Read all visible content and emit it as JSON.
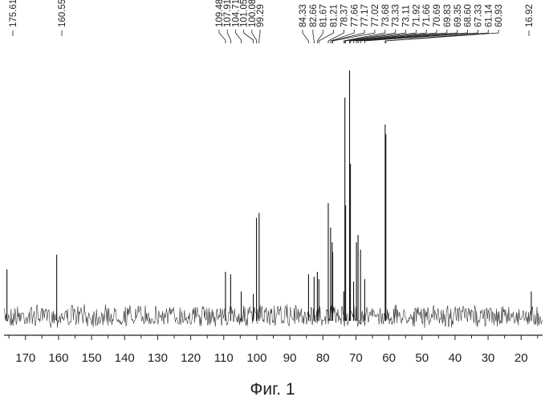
{
  "figure": {
    "caption": "Фиг. 1"
  },
  "chart_data": {
    "type": "line",
    "title": "",
    "xlabel": "",
    "ylabel": "",
    "xlim": [
      176.5,
      13.5
    ],
    "x_reversed": true,
    "xticks": [
      170,
      160,
      150,
      140,
      130,
      120,
      110,
      100,
      90,
      80,
      70,
      60,
      50,
      40,
      30,
      20
    ],
    "grid": false,
    "peak_labels": [
      "175.61",
      "160.55",
      "109.48",
      "107.91",
      "104.71",
      "101.05",
      "100.08",
      "99.29",
      "84.33",
      "82.66",
      "81.67",
      "81.21",
      "78.37",
      "77.66",
      "77.17",
      "77.02",
      "73.68",
      "73.33",
      "73.11",
      "71.92",
      "71.66",
      "70.69",
      "69.83",
      "69.35",
      "68.60",
      "67.33",
      "61.14",
      "60.93",
      "16.92"
    ],
    "series": [
      {
        "name": "",
        "peaks": [
          {
            "x": 175.61,
            "y": 0.19
          },
          {
            "x": 160.55,
            "y": 0.25
          },
          {
            "x": 109.48,
            "y": 0.18
          },
          {
            "x": 107.91,
            "y": 0.17
          },
          {
            "x": 104.71,
            "y": 0.1
          },
          {
            "x": 101.05,
            "y": 0.09
          },
          {
            "x": 100.08,
            "y": 0.4
          },
          {
            "x": 99.29,
            "y": 0.42
          },
          {
            "x": 84.33,
            "y": 0.17
          },
          {
            "x": 82.66,
            "y": 0.16
          },
          {
            "x": 81.67,
            "y": 0.18
          },
          {
            "x": 81.21,
            "y": 0.15
          },
          {
            "x": 78.37,
            "y": 0.46
          },
          {
            "x": 77.66,
            "y": 0.36
          },
          {
            "x": 77.17,
            "y": 0.3
          },
          {
            "x": 77.02,
            "y": 0.26
          },
          {
            "x": 73.68,
            "y": 0.1
          },
          {
            "x": 73.33,
            "y": 0.89
          },
          {
            "x": 73.11,
            "y": 0.45
          },
          {
            "x": 71.92,
            "y": 1.0
          },
          {
            "x": 71.66,
            "y": 0.62
          },
          {
            "x": 70.69,
            "y": 0.14
          },
          {
            "x": 69.83,
            "y": 0.3
          },
          {
            "x": 69.35,
            "y": 0.33
          },
          {
            "x": 68.6,
            "y": 0.27
          },
          {
            "x": 67.33,
            "y": 0.15
          },
          {
            "x": 61.14,
            "y": 0.78
          },
          {
            "x": 60.93,
            "y": 0.74
          },
          {
            "x": 16.92,
            "y": 0.1
          }
        ]
      }
    ]
  }
}
